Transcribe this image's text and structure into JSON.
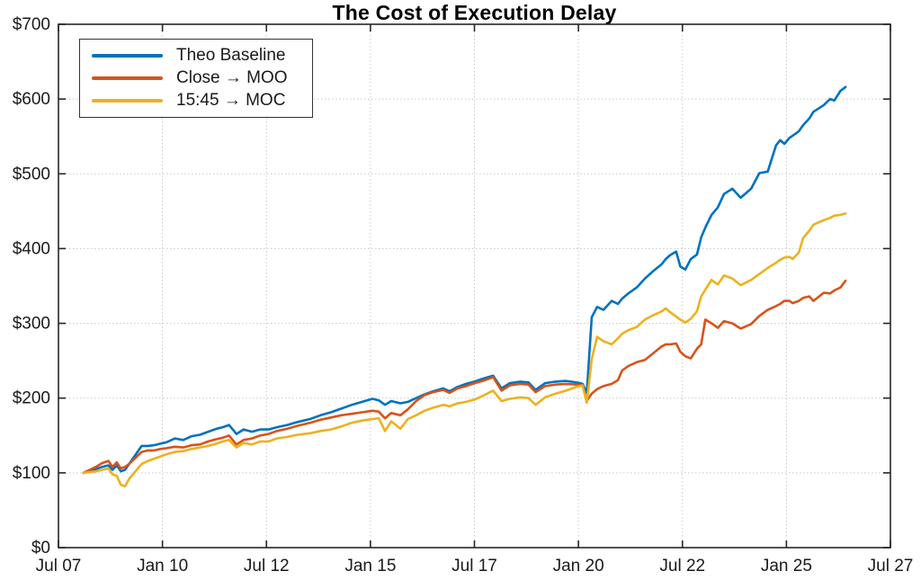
{
  "chart_data": {
    "type": "line",
    "title": "The Cost of Execution Delay",
    "xlabel": "",
    "ylabel": "",
    "x_unit": "decimal_year",
    "xlim": [
      2007.5,
      2027.5
    ],
    "ylim": [
      0,
      700
    ],
    "grid": "dotted",
    "legend_position": "top-left",
    "axis_color": "#262626",
    "grid_color": "#c9c9c9",
    "x_ticks": [
      {
        "t": 2007.5,
        "label": "Jul 07"
      },
      {
        "t": 2010.0,
        "label": "Jan 10"
      },
      {
        "t": 2012.5,
        "label": "Jul 12"
      },
      {
        "t": 2015.0,
        "label": "Jan 15"
      },
      {
        "t": 2017.5,
        "label": "Jul 17"
      },
      {
        "t": 2020.0,
        "label": "Jan 20"
      },
      {
        "t": 2022.5,
        "label": "Jul 22"
      },
      {
        "t": 2025.0,
        "label": "Jan 25"
      },
      {
        "t": 2027.5,
        "label": "Jul 27"
      }
    ],
    "y_ticks": [
      {
        "v": 0,
        "label": "$0"
      },
      {
        "v": 100,
        "label": "$100"
      },
      {
        "v": 200,
        "label": "$200"
      },
      {
        "v": 300,
        "label": "$300"
      },
      {
        "v": 400,
        "label": "$400"
      },
      {
        "v": 500,
        "label": "$500"
      },
      {
        "v": 600,
        "label": "$600"
      },
      {
        "v": 700,
        "label": "$700"
      }
    ],
    "x": [
      2008.1,
      2008.25,
      2008.4,
      2008.55,
      2008.7,
      2008.8,
      2008.9,
      2009.0,
      2009.1,
      2009.2,
      2009.35,
      2009.5,
      2009.65,
      2009.8,
      2009.95,
      2010.1,
      2010.3,
      2010.5,
      2010.7,
      2010.9,
      2011.1,
      2011.3,
      2011.45,
      2011.6,
      2011.78,
      2011.95,
      2012.15,
      2012.35,
      2012.55,
      2012.75,
      2013.0,
      2013.25,
      2013.55,
      2013.8,
      2014.05,
      2014.3,
      2014.55,
      2014.8,
      2015.05,
      2015.2,
      2015.35,
      2015.5,
      2015.72,
      2015.9,
      2016.1,
      2016.3,
      2016.5,
      2016.75,
      2016.9,
      2017.1,
      2017.3,
      2017.5,
      2017.7,
      2017.95,
      2018.15,
      2018.35,
      2018.6,
      2018.8,
      2018.97,
      2019.2,
      2019.45,
      2019.7,
      2019.95,
      2020.1,
      2020.2,
      2020.32,
      2020.45,
      2020.6,
      2020.8,
      2020.95,
      2021.05,
      2021.2,
      2021.4,
      2021.6,
      2021.8,
      2022.0,
      2022.1,
      2022.2,
      2022.35,
      2022.45,
      2022.57,
      2022.7,
      2022.85,
      2022.95,
      2023.05,
      2023.2,
      2023.35,
      2023.5,
      2023.7,
      2023.9,
      2024.15,
      2024.35,
      2024.55,
      2024.75,
      2024.85,
      2024.95,
      2025.07,
      2025.15,
      2025.3,
      2025.4,
      2025.55,
      2025.65,
      2025.9,
      2026.05,
      2026.15,
      2026.3,
      2026.42
    ],
    "series": [
      {
        "name": "Theo Baseline",
        "color": "#0072BD",
        "values": [
          100,
          103,
          105,
          108,
          110,
          104,
          110,
          102,
          104,
          112,
          124,
          136,
          136,
          137,
          139,
          141,
          146,
          144,
          149,
          151,
          155,
          159,
          161,
          164,
          152,
          158,
          155,
          158,
          158,
          161,
          164,
          168,
          172,
          177,
          181,
          186,
          191,
          195,
          199,
          197,
          191,
          196,
          193,
          195,
          200,
          205,
          209,
          213,
          209,
          215,
          219,
          222,
          226,
          230,
          213,
          220,
          222,
          221,
          211,
          220,
          222,
          223,
          221,
          219,
          207,
          308,
          322,
          318,
          330,
          326,
          333,
          340,
          348,
          360,
          370,
          379,
          386,
          391,
          396,
          376,
          372,
          386,
          392,
          415,
          428,
          445,
          455,
          473,
          480,
          468,
          480,
          501,
          503,
          538,
          545,
          540,
          548,
          551,
          557,
          565,
          574,
          583,
          592,
          600,
          598,
          611,
          616
        ]
      },
      {
        "name": "Close → MOO",
        "color": "#D95319",
        "values": [
          100,
          104,
          108,
          113,
          116,
          108,
          114,
          106,
          108,
          112,
          120,
          128,
          130,
          130,
          132,
          133,
          135,
          134,
          137,
          138,
          142,
          145,
          147,
          150,
          138,
          144,
          146,
          150,
          152,
          156,
          159,
          163,
          167,
          171,
          174,
          177,
          179,
          181,
          183,
          182,
          173,
          180,
          177,
          185,
          196,
          204,
          208,
          211,
          207,
          213,
          216,
          220,
          223,
          228,
          210,
          217,
          219,
          218,
          208,
          216,
          218,
          219,
          218,
          217,
          196,
          206,
          212,
          216,
          219,
          224,
          237,
          243,
          248,
          251,
          260,
          269,
          272,
          272,
          273,
          262,
          256,
          253,
          266,
          272,
          305,
          300,
          294,
          303,
          300,
          293,
          299,
          310,
          318,
          323,
          326,
          330,
          330,
          327,
          330,
          334,
          336,
          330,
          341,
          340,
          344,
          348,
          357
        ]
      },
      {
        "name": "15:45 → MOC",
        "color": "#EDB120",
        "values": [
          100,
          101,
          102,
          104,
          106,
          98,
          96,
          84,
          82,
          92,
          102,
          112,
          116,
          119,
          122,
          125,
          128,
          129,
          132,
          134,
          136,
          139,
          142,
          144,
          134,
          140,
          138,
          142,
          142,
          146,
          148,
          151,
          153,
          156,
          158,
          162,
          167,
          170,
          172,
          173,
          156,
          169,
          159,
          172,
          177,
          183,
          187,
          191,
          189,
          193,
          195,
          198,
          203,
          210,
          196,
          199,
          201,
          200,
          191,
          201,
          206,
          210,
          215,
          217,
          194,
          252,
          282,
          276,
          272,
          280,
          286,
          291,
          295,
          305,
          311,
          316,
          320,
          315,
          309,
          305,
          301,
          306,
          316,
          336,
          345,
          358,
          352,
          364,
          360,
          351,
          358,
          366,
          374,
          381,
          385,
          388,
          389,
          386,
          395,
          414,
          424,
          432,
          438,
          441,
          444,
          445,
          447
        ]
      }
    ]
  }
}
